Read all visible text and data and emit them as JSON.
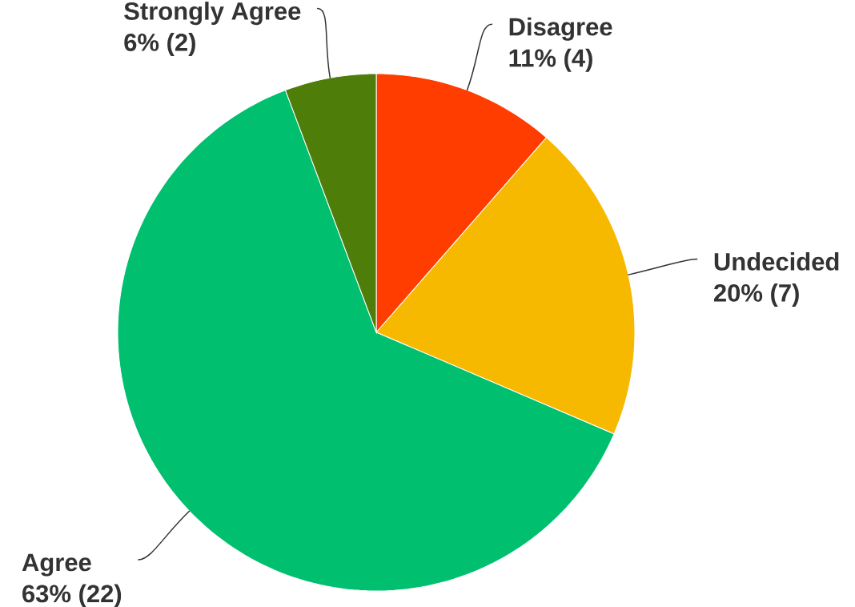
{
  "chart_data": {
    "type": "pie",
    "categories": [
      "Disagree",
      "Undecided",
      "Agree",
      "Strongly Agree"
    ],
    "values": [
      4,
      7,
      22,
      2
    ],
    "colors": [
      "#ff3d00",
      "#f7b900",
      "#00bf6f",
      "#4e7d0a"
    ],
    "value_labels": [
      "11% (4)",
      "20% (7)",
      "63% (22)",
      "6% (2)"
    ]
  }
}
